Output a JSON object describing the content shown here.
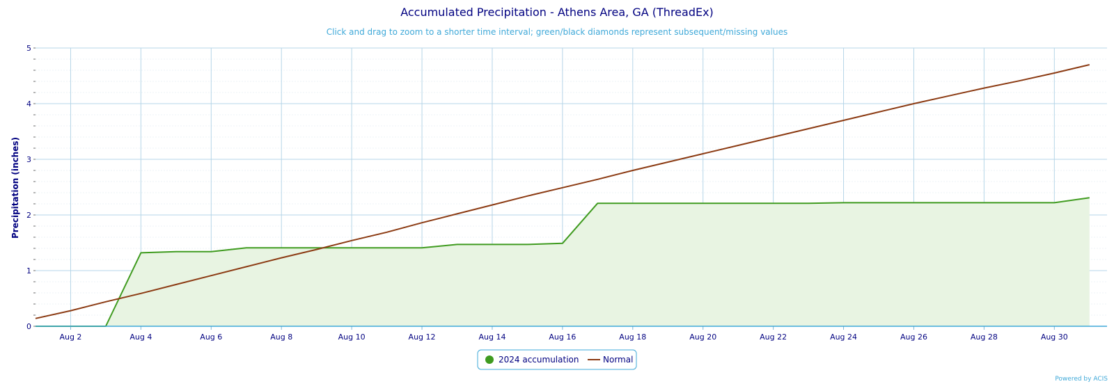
{
  "chart_data": {
    "type": "area",
    "title": "Accumulated Precipitation - Athens Area, GA (ThreadEx)",
    "subtitle": "Click and drag to zoom to a shorter time interval; green/black diamonds represent subsequent/missing values",
    "ylabel": "Precipitation (inches)",
    "xlabel": "",
    "ylim": [
      0,
      5
    ],
    "yticks": [
      "0",
      "1",
      "2",
      "3",
      "4",
      "5"
    ],
    "xlim": [
      1,
      31.5
    ],
    "x_tick_labels": [
      {
        "day": 2,
        "label": "Aug 2"
      },
      {
        "day": 4,
        "label": "Aug 4"
      },
      {
        "day": 6,
        "label": "Aug 6"
      },
      {
        "day": 8,
        "label": "Aug 8"
      },
      {
        "day": 10,
        "label": "Aug 10"
      },
      {
        "day": 12,
        "label": "Aug 12"
      },
      {
        "day": 14,
        "label": "Aug 14"
      },
      {
        "day": 16,
        "label": "Aug 16"
      },
      {
        "day": 18,
        "label": "Aug 18"
      },
      {
        "day": 20,
        "label": "Aug 20"
      },
      {
        "day": 22,
        "label": "Aug 22"
      },
      {
        "day": 24,
        "label": "Aug 24"
      },
      {
        "day": 26,
        "label": "Aug 26"
      },
      {
        "day": 28,
        "label": "Aug 28"
      },
      {
        "day": 30,
        "label": "Aug 30"
      }
    ],
    "grid": true,
    "legend_position": "bottom-center",
    "series": [
      {
        "name": "2024 accumulation",
        "color": "#3f9b1f",
        "fill": "#e8f4e2",
        "points": [
          [
            1,
            0.0
          ],
          [
            2,
            0.0
          ],
          [
            3,
            0.0
          ],
          [
            4,
            1.32
          ],
          [
            5,
            1.34
          ],
          [
            6,
            1.34
          ],
          [
            7,
            1.41
          ],
          [
            8,
            1.41
          ],
          [
            9,
            1.41
          ],
          [
            10,
            1.41
          ],
          [
            11,
            1.41
          ],
          [
            12,
            1.41
          ],
          [
            13,
            1.47
          ],
          [
            14,
            1.47
          ],
          [
            15,
            1.47
          ],
          [
            16,
            1.49
          ],
          [
            17,
            2.21
          ],
          [
            18,
            2.21
          ],
          [
            19,
            2.21
          ],
          [
            20,
            2.21
          ],
          [
            21,
            2.21
          ],
          [
            22,
            2.21
          ],
          [
            23,
            2.21
          ],
          [
            24,
            2.22
          ],
          [
            25,
            2.22
          ],
          [
            26,
            2.22
          ],
          [
            27,
            2.22
          ],
          [
            28,
            2.22
          ],
          [
            29,
            2.22
          ],
          [
            30,
            2.22
          ],
          [
            31,
            2.31
          ]
        ]
      },
      {
        "name": "Normal",
        "color": "#8b3a12",
        "points": [
          [
            1,
            0.14
          ],
          [
            2,
            0.28
          ],
          [
            3,
            0.44
          ],
          [
            4,
            0.59
          ],
          [
            5,
            0.75
          ],
          [
            6,
            0.91
          ],
          [
            7,
            1.07
          ],
          [
            8,
            1.23
          ],
          [
            9,
            1.38
          ],
          [
            10,
            1.54
          ],
          [
            11,
            1.69
          ],
          [
            12,
            1.86
          ],
          [
            13,
            2.02
          ],
          [
            14,
            2.18
          ],
          [
            15,
            2.34
          ],
          [
            16,
            2.49
          ],
          [
            17,
            2.64
          ],
          [
            18,
            2.8
          ],
          [
            19,
            2.95
          ],
          [
            20,
            3.1
          ],
          [
            21,
            3.25
          ],
          [
            22,
            3.4
          ],
          [
            23,
            3.55
          ],
          [
            24,
            3.7
          ],
          [
            25,
            3.85
          ],
          [
            26,
            4.0
          ],
          [
            27,
            4.14
          ],
          [
            28,
            4.28
          ],
          [
            29,
            4.41
          ],
          [
            30,
            4.55
          ],
          [
            31,
            4.7
          ]
        ]
      }
    ],
    "credit": "Powered by ACIS"
  }
}
